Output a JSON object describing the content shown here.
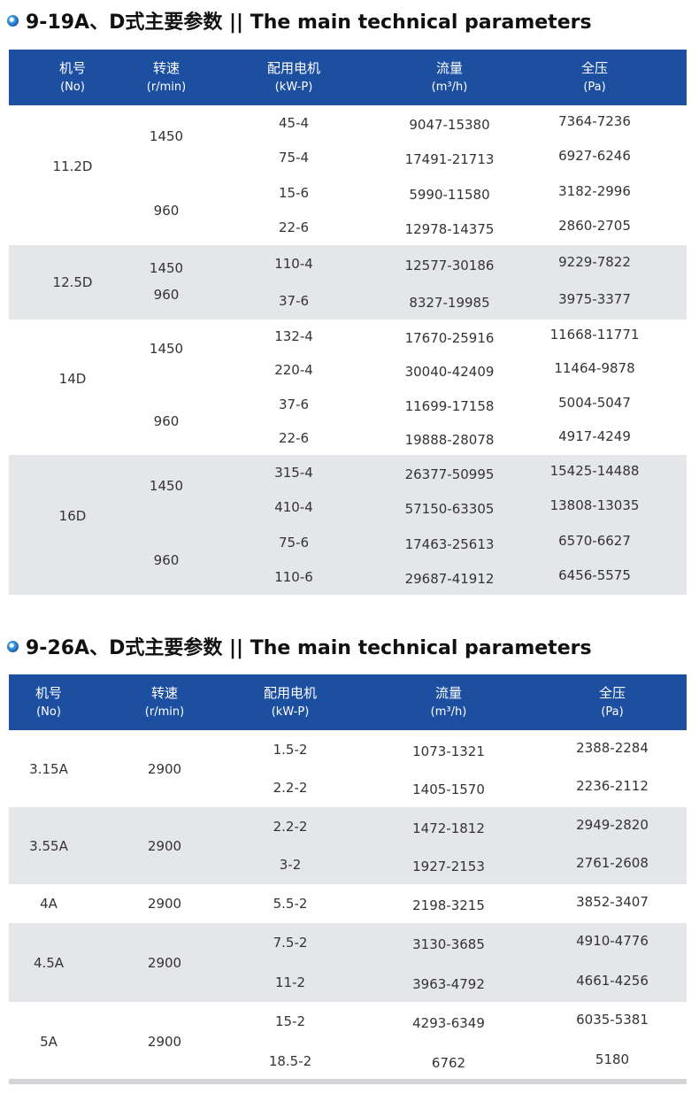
{
  "sections": [
    {
      "title": "9-19A、D式主要参数 || The main technical parameters",
      "headers": [
        {
          "cn": "机号",
          "en": "(No)"
        },
        {
          "cn": "转速",
          "en": "(r/min)"
        },
        {
          "cn": "配用电机",
          "en": "(kW-P)"
        },
        {
          "cn": "流量",
          "en": "(m³/h)"
        },
        {
          "cn": "全压",
          "en": "(Pa)"
        }
      ],
      "groups": [
        {
          "no": "11.2D",
          "speeds": [
            "1450",
            "960"
          ],
          "rows": [
            {
              "motor": "45-4",
              "flow": "9047-15380",
              "pressure": "7364-7236"
            },
            {
              "motor": "75-4",
              "flow": "17491-21713",
              "pressure": "6927-6246"
            },
            {
              "motor": "15-6",
              "flow": "5990-11580",
              "pressure": "3182-2996"
            },
            {
              "motor": "22-6",
              "flow": "12978-14375",
              "pressure": "2860-2705"
            }
          ]
        },
        {
          "no": "12.5D",
          "speeds": [
            "1450",
            "960"
          ],
          "rows": [
            {
              "motor": "110-4",
              "flow": "12577-30186",
              "pressure": "9229-7822"
            },
            {
              "motor": "37-6",
              "flow": "8327-19985",
              "pressure": "3975-3377"
            }
          ]
        },
        {
          "no": "14D",
          "speeds": [
            "1450",
            "960"
          ],
          "rows": [
            {
              "motor": "132-4",
              "flow": "17670-25916",
              "pressure": "11668-11771"
            },
            {
              "motor": "220-4",
              "flow": "30040-42409",
              "pressure": "11464-9878"
            },
            {
              "motor": "37-6",
              "flow": "11699-17158",
              "pressure": "5004-5047"
            },
            {
              "motor": "22-6",
              "flow": "19888-28078",
              "pressure": "4917-4249"
            }
          ]
        },
        {
          "no": "16D",
          "speeds": [
            "1450",
            "960"
          ],
          "rows": [
            {
              "motor": "315-4",
              "flow": "26377-50995",
              "pressure": "15425-14488"
            },
            {
              "motor": "410-4",
              "flow": "57150-63305",
              "pressure": "13808-13035"
            },
            {
              "motor": "75-6",
              "flow": "17463-25613",
              "pressure": "6570-6627"
            },
            {
              "motor": "110-6",
              "flow": "29687-41912",
              "pressure": "6456-5575"
            }
          ]
        }
      ]
    },
    {
      "title": "9-26A、D式主要参数 || The main technical parameters",
      "headers": [
        {
          "cn": "机号",
          "en": "(No)"
        },
        {
          "cn": "转速",
          "en": "(r/min)"
        },
        {
          "cn": "配用电机",
          "en": "(kW-P)"
        },
        {
          "cn": "流量",
          "en": "(m³/h)"
        },
        {
          "cn": "全压",
          "en": "(Pa)"
        }
      ],
      "groups": [
        {
          "no": "3.15A",
          "speeds": [
            "2900"
          ],
          "rows": [
            {
              "motor": "1.5-2",
              "flow": "1073-1321",
              "pressure": "2388-2284"
            },
            {
              "motor": "2.2-2",
              "flow": "1405-1570",
              "pressure": "2236-2112"
            }
          ]
        },
        {
          "no": "3.55A",
          "speeds": [
            "2900"
          ],
          "rows": [
            {
              "motor": "2.2-2",
              "flow": "1472-1812",
              "pressure": "2949-2820"
            },
            {
              "motor": "3-2",
              "flow": "1927-2153",
              "pressure": "2761-2608"
            }
          ]
        },
        {
          "no": "4A",
          "speeds": [
            "2900"
          ],
          "rows": [
            {
              "motor": "5.5-2",
              "flow": "2198-3215",
              "pressure": "3852-3407"
            }
          ]
        },
        {
          "no": "4.5A",
          "speeds": [
            "2900"
          ],
          "rows": [
            {
              "motor": "7.5-2",
              "flow": "3130-3685",
              "pressure": "4910-4776"
            },
            {
              "motor": "11-2",
              "flow": "3963-4792",
              "pressure": "4661-4256"
            }
          ]
        },
        {
          "no": "5A",
          "speeds": [
            "2900"
          ],
          "rows": [
            {
              "motor": "15-2",
              "flow": "4293-6349",
              "pressure": "6035-5381"
            },
            {
              "motor": "18.5-2",
              "flow": "6762",
              "pressure": "5180"
            }
          ]
        }
      ]
    }
  ]
}
